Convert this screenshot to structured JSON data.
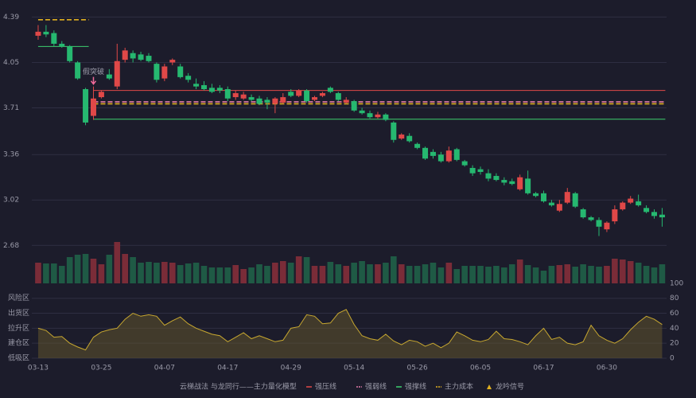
{
  "chart_data": [
    {
      "type": "candlestick",
      "categories": [
        "03-13",
        null,
        null,
        null,
        null,
        null,
        null,
        null,
        "03-25",
        null,
        null,
        null,
        null,
        null,
        null,
        null,
        "04-07",
        null,
        null,
        null,
        null,
        null,
        null,
        null,
        "04-17",
        null,
        null,
        null,
        null,
        null,
        null,
        null,
        "04-29",
        null,
        null,
        null,
        null,
        null,
        null,
        null,
        "05-14",
        null,
        null,
        null,
        null,
        null,
        null,
        null,
        "05-26",
        null,
        null,
        null,
        null,
        null,
        null,
        null,
        "06-05",
        null,
        null,
        null,
        null,
        null,
        null,
        null,
        "06-17",
        null,
        null,
        null,
        null,
        null,
        null,
        null,
        "06-30",
        null,
        null,
        null,
        null,
        null,
        null,
        null
      ],
      "open": [
        4.25,
        4.28,
        4.27,
        4.19,
        4.17,
        4.05,
        3.85,
        3.65,
        3.79,
        3.96,
        3.87,
        4.07,
        4.12,
        4.11,
        4.1,
        4.04,
        3.93,
        4.05,
        4.02,
        3.95,
        3.89,
        3.88,
        3.86,
        3.86,
        3.85,
        3.79,
        3.78,
        3.79,
        3.78,
        3.77,
        3.74,
        3.75,
        3.83,
        3.8,
        3.84,
        3.77,
        3.8,
        3.86,
        3.82,
        3.75,
        3.76,
        3.69,
        3.67,
        3.64,
        3.66,
        3.6,
        3.48,
        3.5,
        3.44,
        3.41,
        3.38,
        3.36,
        3.31,
        3.4,
        3.31,
        3.26,
        3.25,
        3.22,
        3.2,
        3.17,
        3.16,
        3.1,
        3.18,
        3.07,
        3.07,
        3.0,
        2.94,
        3.0,
        3.07,
        2.95,
        2.89,
        2.87,
        2.8,
        2.86,
        2.95,
        3.0,
        3.01,
        2.96,
        2.93,
        2.91
      ],
      "high": [
        4.33,
        4.33,
        4.29,
        4.21,
        4.18,
        4.06,
        3.86,
        3.87,
        3.84,
        4.0,
        4.19,
        4.16,
        4.14,
        4.13,
        4.12,
        4.05,
        4.04,
        4.08,
        4.04,
        3.97,
        3.93,
        3.91,
        3.89,
        3.88,
        3.87,
        3.84,
        3.83,
        3.81,
        3.8,
        3.79,
        3.79,
        3.82,
        3.85,
        3.85,
        3.85,
        3.8,
        3.83,
        3.87,
        3.83,
        3.79,
        3.77,
        3.71,
        3.69,
        3.68,
        3.67,
        3.61,
        3.52,
        3.52,
        3.45,
        3.42,
        3.4,
        3.38,
        3.42,
        3.41,
        3.32,
        3.28,
        3.27,
        3.25,
        3.22,
        3.19,
        3.18,
        3.21,
        3.24,
        3.08,
        3.09,
        3.02,
        3.02,
        3.11,
        3.08,
        2.96,
        2.9,
        2.89,
        2.86,
        2.98,
        3.01,
        3.05,
        3.06,
        2.98,
        2.95,
        2.96
      ],
      "low": [
        4.22,
        4.24,
        4.17,
        4.16,
        4.05,
        3.92,
        3.58,
        3.62,
        3.78,
        3.92,
        3.85,
        4.05,
        4.05,
        4.06,
        4.05,
        3.9,
        3.91,
        4.03,
        3.93,
        3.9,
        3.85,
        3.84,
        3.82,
        3.82,
        3.76,
        3.77,
        3.77,
        3.76,
        3.73,
        3.7,
        3.67,
        3.74,
        3.79,
        3.79,
        3.75,
        3.76,
        3.79,
        3.82,
        3.76,
        3.74,
        3.68,
        3.66,
        3.63,
        3.63,
        3.61,
        3.45,
        3.47,
        3.45,
        3.4,
        3.32,
        3.33,
        3.3,
        3.3,
        3.31,
        3.27,
        3.2,
        3.21,
        3.16,
        3.16,
        3.13,
        3.13,
        3.09,
        3.06,
        3.04,
        3.0,
        2.97,
        2.93,
        2.99,
        2.96,
        2.88,
        2.86,
        2.75,
        2.78,
        2.84,
        2.94,
        2.99,
        2.97,
        2.92,
        2.88,
        2.82
      ],
      "close": [
        4.28,
        4.26,
        4.19,
        4.17,
        4.06,
        3.93,
        3.6,
        3.78,
        3.83,
        3.93,
        4.06,
        4.14,
        4.08,
        4.07,
        4.06,
        3.92,
        4.02,
        4.07,
        3.94,
        3.92,
        3.87,
        3.85,
        3.83,
        3.84,
        3.78,
        3.82,
        3.81,
        3.77,
        3.74,
        3.75,
        3.78,
        3.79,
        3.8,
        3.84,
        3.76,
        3.79,
        3.82,
        3.83,
        3.77,
        3.77,
        3.69,
        3.67,
        3.64,
        3.66,
        3.62,
        3.47,
        3.51,
        3.46,
        3.41,
        3.33,
        3.35,
        3.31,
        3.39,
        3.32,
        3.28,
        3.22,
        3.23,
        3.18,
        3.17,
        3.15,
        3.14,
        3.19,
        3.07,
        3.05,
        3.01,
        2.98,
        2.99,
        3.08,
        2.97,
        2.89,
        2.87,
        2.82,
        2.85,
        2.95,
        3.0,
        3.03,
        2.98,
        2.93,
        2.9,
        2.89
      ],
      "up_color": "#e04848",
      "down_color": "#26b870",
      "ylim": [
        2.61,
        4.47
      ],
      "yticks": [
        4.39,
        4.05,
        3.71,
        3.36,
        3.02,
        2.68
      ],
      "grid": true,
      "levels": [
        {
          "legend": 0,
          "value": 3.84,
          "from": 7,
          "to": 79
        },
        {
          "legend": 1,
          "value": 3.755,
          "from": 7,
          "to": 79
        },
        {
          "legend": 3,
          "value": 3.74,
          "from": 7,
          "to": 79
        },
        {
          "legend": 2,
          "value": 3.625,
          "from": 7,
          "to": 79
        },
        {
          "legend": 3,
          "value": 4.37,
          "from": 0,
          "to": 6
        },
        {
          "legend": 2,
          "value": 4.17,
          "from": 0,
          "to": 6
        }
      ],
      "annotation": {
        "text": "假突破",
        "index": 7,
        "color": "#f06a9a"
      },
      "legend": {
        "title": "云梯战法  与龙同行——主力量化模型",
        "items": [
          {
            "name": "强压线",
            "color": "#e04848",
            "style": "line"
          },
          {
            "name": "强弱线",
            "color": "#e07aa8",
            "style": "dashed"
          },
          {
            "name": "强撑线",
            "color": "#3ccf6e",
            "style": "line"
          },
          {
            "name": "主力成本",
            "color": "#e0b020",
            "style": "dashed"
          },
          {
            "name": "龙吟信号",
            "color": "#e0b020",
            "style": "triangle"
          }
        ]
      }
    },
    {
      "type": "bar",
      "values": [
        126,
        125,
        125,
        122,
        133,
        136,
        137,
        131,
        124,
        136,
        152,
        137,
        133,
        126,
        127,
        126,
        127,
        126,
        123,
        125,
        126,
        122,
        120,
        120,
        120,
        123,
        118,
        120,
        124,
        122,
        126,
        128,
        126,
        134,
        133,
        122,
        122,
        127,
        124,
        122,
        126,
        128,
        124,
        124,
        126,
        134,
        124,
        122,
        122,
        124,
        126,
        120,
        126,
        118,
        122,
        122,
        122,
        121,
        122,
        120,
        124,
        130,
        123,
        120,
        116,
        122,
        123,
        124,
        121,
        124,
        122,
        121,
        122,
        131,
        130,
        128,
        126,
        122,
        120,
        124
      ],
      "ylim": [
        100,
        156
      ],
      "yticks": [
        100
      ],
      "tick_color": "#3ccf6e"
    },
    {
      "type": "area",
      "values": [
        40,
        37,
        28,
        29,
        20,
        15,
        11,
        28,
        35,
        38,
        40,
        52,
        60,
        56,
        58,
        56,
        44,
        50,
        55,
        46,
        40,
        36,
        32,
        30,
        22,
        28,
        34,
        26,
        30,
        26,
        22,
        24,
        40,
        42,
        58,
        56,
        46,
        47,
        60,
        65,
        45,
        30,
        26,
        24,
        32,
        23,
        18,
        24,
        22,
        16,
        20,
        14,
        20,
        35,
        30,
        24,
        22,
        25,
        36,
        26,
        25,
        22,
        18,
        30,
        40,
        25,
        28,
        20,
        18,
        22,
        44,
        30,
        24,
        20,
        26,
        38,
        48,
        56,
        52,
        45
      ],
      "color": "#c8a830",
      "ylim": [
        0,
        85
      ],
      "yticks": [
        80,
        60,
        40,
        20,
        0
      ],
      "ytick_colors": [
        "#e0a030",
        "#c050d0",
        "#b060d0",
        "#e06080",
        "#e04848"
      ],
      "zones": [
        {
          "text": "风险区",
          "color": "#e0a030",
          "value": 80
        },
        {
          "text": "出货区",
          "color": "#d050d0",
          "value": 60
        },
        {
          "text": "拉升区",
          "color": "#4a8ae0",
          "value": 40
        },
        {
          "text": "建仓区",
          "color": "#e06080",
          "value": 20
        },
        {
          "text": "低吸区",
          "color": "#e04848",
          "value": 0
        }
      ]
    }
  ]
}
